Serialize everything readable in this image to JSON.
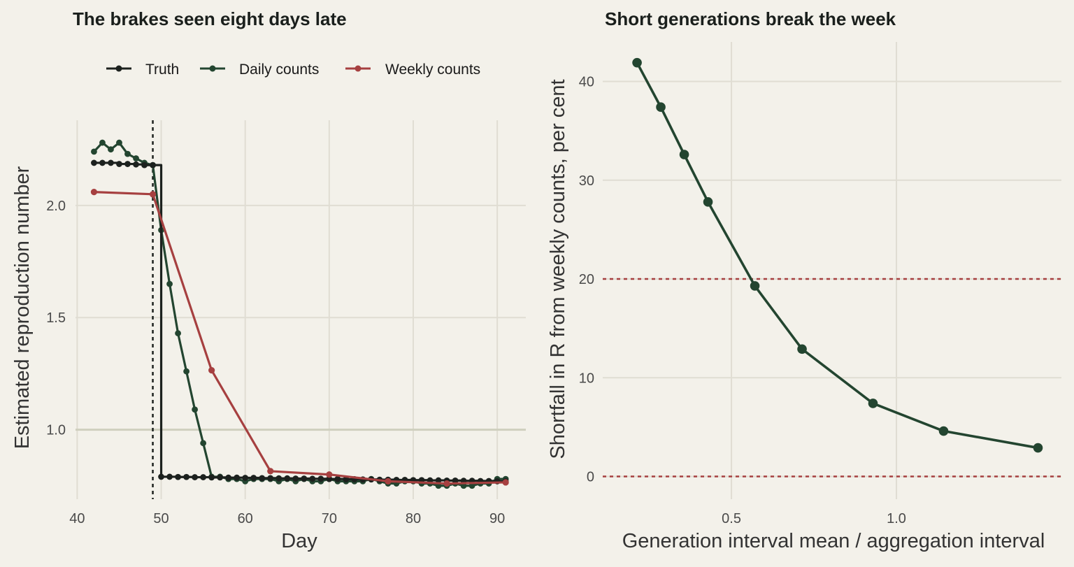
{
  "chart_data": [
    {
      "type": "line",
      "title": "The brakes seen eight days late",
      "xlabel": "Day",
      "ylabel": "Estimated reproduction number",
      "xlim": [
        39.8,
        93.4
      ],
      "ylim": [
        0.69,
        2.38
      ],
      "x_ticks": [
        40,
        50,
        60,
        70,
        80,
        90
      ],
      "y_ticks": [
        1.0,
        1.5,
        2.0
      ],
      "y_tick_labels": [
        "1.0",
        "1.5",
        "2.0"
      ],
      "reference_hline": 1.0,
      "reference_vline": 49,
      "grid": true,
      "legend_position": "top",
      "series": [
        {
          "name": "Truth",
          "color": "#1c211e",
          "step": true,
          "x": [
            42,
            43,
            44,
            45,
            46,
            47,
            48,
            49,
            50,
            51,
            52,
            53,
            54,
            55,
            56,
            57,
            58,
            59,
            60,
            61,
            62,
            63,
            64,
            65,
            66,
            67,
            68,
            69,
            70,
            71,
            72,
            73,
            74,
            75,
            76,
            77,
            78,
            79,
            80,
            81,
            82,
            83,
            84,
            85,
            86,
            87,
            88,
            89,
            90,
            91
          ],
          "y": [
            2.19,
            2.19,
            2.19,
            2.185,
            2.185,
            2.183,
            2.18,
            2.18,
            0.79,
            0.79,
            0.789,
            0.789,
            0.788,
            0.788,
            0.787,
            0.787,
            0.786,
            0.786,
            0.785,
            0.785,
            0.784,
            0.784,
            0.783,
            0.783,
            0.782,
            0.782,
            0.781,
            0.781,
            0.78,
            0.78,
            0.779,
            0.779,
            0.778,
            0.778,
            0.777,
            0.777,
            0.776,
            0.776,
            0.775,
            0.775,
            0.774,
            0.774,
            0.773,
            0.773,
            0.772,
            0.772,
            0.771,
            0.771,
            0.77,
            0.77
          ]
        },
        {
          "name": "Daily counts",
          "color": "#234530",
          "x": [
            42,
            43,
            44,
            45,
            46,
            47,
            48,
            49,
            50,
            51,
            52,
            53,
            54,
            55,
            56,
            57,
            58,
            59,
            60,
            61,
            62,
            63,
            64,
            65,
            66,
            67,
            68,
            69,
            70,
            71,
            72,
            73,
            74,
            75,
            76,
            77,
            78,
            79,
            80,
            81,
            82,
            83,
            84,
            85,
            86,
            87,
            88,
            89,
            90,
            91
          ],
          "y": [
            2.24,
            2.28,
            2.25,
            2.28,
            2.23,
            2.21,
            2.19,
            2.18,
            1.89,
            1.65,
            1.43,
            1.26,
            1.09,
            0.94,
            0.79,
            0.79,
            0.78,
            0.78,
            0.77,
            0.78,
            0.78,
            0.78,
            0.77,
            0.78,
            0.77,
            0.78,
            0.77,
            0.77,
            0.78,
            0.77,
            0.77,
            0.77,
            0.77,
            0.78,
            0.77,
            0.76,
            0.76,
            0.77,
            0.77,
            0.76,
            0.76,
            0.75,
            0.75,
            0.76,
            0.75,
            0.75,
            0.76,
            0.76,
            0.78,
            0.78
          ]
        },
        {
          "name": "Weekly counts",
          "color": "#a64040",
          "x": [
            42,
            49,
            56,
            63,
            70,
            77,
            84,
            91
          ],
          "y": [
            2.06,
            2.05,
            1.265,
            0.815,
            0.8,
            0.77,
            0.76,
            0.765
          ]
        }
      ]
    },
    {
      "type": "line",
      "title": "Short generations break the week",
      "xlabel": "Generation interval mean / aggregation interval",
      "ylabel": "Shortfall in R from weekly counts, per cent",
      "xlim": [
        0.11,
        1.5
      ],
      "ylim": [
        -2.3,
        44
      ],
      "x_ticks": [
        0.5,
        1.0
      ],
      "x_tick_labels": [
        "0.5",
        "1.0"
      ],
      "y_ticks": [
        0,
        10,
        20,
        30,
        40
      ],
      "reference_hlines": [
        0,
        20
      ],
      "reference_color": "#a64040",
      "grid": true,
      "series": [
        {
          "color": "#234530",
          "x": [
            0.214,
            0.286,
            0.357,
            0.429,
            0.571,
            0.714,
            0.929,
            1.143,
            1.429
          ],
          "y": [
            41.9,
            37.4,
            32.6,
            27.8,
            19.3,
            12.9,
            7.4,
            4.6,
            2.9
          ]
        }
      ]
    }
  ]
}
